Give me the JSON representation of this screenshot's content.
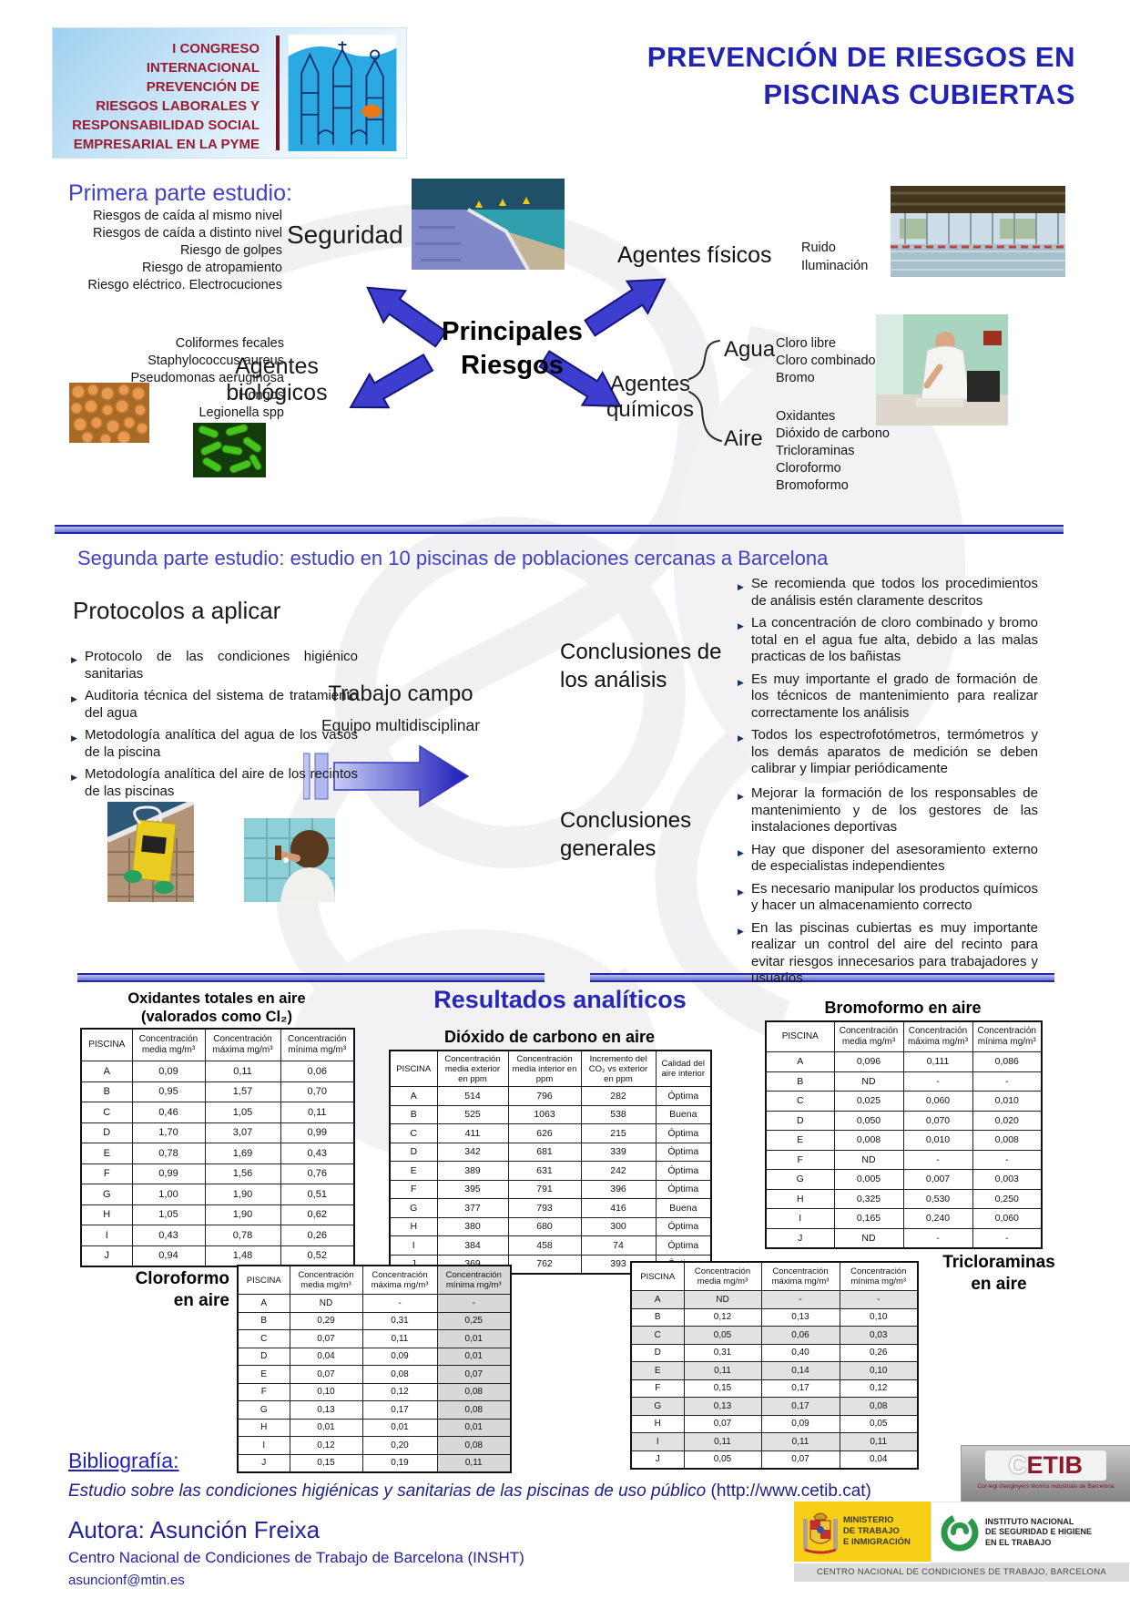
{
  "congress": {
    "lines": [
      "I CONGRESO INTERNACIONAL",
      "PREVENCIÓN DE",
      "RIESGOS LABORALES Y",
      "RESPONSABILIDAD SOCIAL",
      "EMPRESARIAL EN LA PYME"
    ]
  },
  "title": {
    "line1": "PREVENCIÓN DE RIESGOS EN",
    "line2": "PISCINAS CUBIERTAS"
  },
  "part1": {
    "heading": "Primera parte estudio:",
    "central": {
      "line1": "Principales",
      "line2": "Riesgos"
    },
    "seguridad": {
      "label": "Seguridad",
      "risks": [
        "Riesgos de caída al mismo nivel",
        "Riesgos de caída a distinto nivel",
        "Riesgo de golpes",
        "Riesgo de atropamiento",
        "Riesgo eléctrico. Electrocuciones"
      ]
    },
    "fisicos": {
      "label": "Agentes físicos",
      "items": [
        "Ruido",
        "Iluminación"
      ]
    },
    "biologicos": {
      "line1": "Agentes",
      "line2": "biológicos",
      "items": [
        "Coliformes fecales",
        "Staphylococcus aureus",
        "Pseudomonas aeruginosa",
        "Hongos",
        "Legionella spp"
      ]
    },
    "quimicos": {
      "line1": "Agentes",
      "line2": "químicos",
      "agua": {
        "label": "Agua",
        "items": [
          "Cloro libre",
          "Cloro combinado",
          "Bromo"
        ]
      },
      "aire": {
        "label": "Aire",
        "items": [
          "Oxidantes",
          "Dióxido de carbono",
          "Tricloraminas",
          "Cloroformo",
          "Bromoformo"
        ]
      }
    }
  },
  "part2": {
    "heading": "Segunda parte estudio:  estudio en 10 piscinas de poblaciones cercanas a Barcelona",
    "protocols": {
      "heading": "Protocolos a aplicar",
      "items": [
        "Protocolo de las condiciones higiénico sanitarias",
        "Auditoria técnica del sistema de tratamiento del agua",
        "Metodología analítica del agua de los vasos de la piscina",
        "Metodología analítica del aire de los recintos de las piscinas"
      ]
    },
    "fieldwork": {
      "label": "Trabajo campo",
      "sub": "Equipo multidisciplinar"
    },
    "analysis": {
      "line1": "Conclusiones de",
      "line2": "los análisis",
      "items": [
        "Se recomienda que todos los procedimientos de análisis estén claramente descritos",
        "La concentración de cloro combinado y bromo total en el agua fue alta, debido a las malas practicas de los bañistas",
        "Es muy importante el grado de formación de los técnicos de mantenimiento para realizar correctamente los análisis",
        "Todos los espectrofotómetros, termómetros y los demás aparatos de medición se deben calibrar y limpiar periódicamente"
      ]
    },
    "general": {
      "line1": "Conclusiones",
      "line2": "generales",
      "items": [
        "Mejorar la formación de los responsables de mantenimiento y de los gestores de las instalaciones deportivas",
        "Hay que disponer del asesoramiento externo de especialistas independientes",
        "Es necesario manipular los productos químicos y hacer un almacenamiento correcto",
        "En las piscinas cubiertas es muy importante realizar un control del aire del recinto para evitar riesgos innecesarios para trabajadores y usuarios"
      ]
    }
  },
  "results": {
    "heading": "Resultados analíticos",
    "oxidantes": {
      "title1": "Oxidantes totales en aire",
      "title2": "(valorados como Cl₂)",
      "headers": [
        "PISCINA",
        "Concentración media mg/m³",
        "Concentración máxima mg/m³",
        "Concentración mínima mg/m³"
      ],
      "rows": [
        [
          "A",
          "0,09",
          "0,11",
          "0,06"
        ],
        [
          "B",
          "0,95",
          "1,57",
          "0,70"
        ],
        [
          "C",
          "0,46",
          "1,05",
          "0,11"
        ],
        [
          "D",
          "1,70",
          "3,07",
          "0,99"
        ],
        [
          "E",
          "0,78",
          "1,69",
          "0,43"
        ],
        [
          "F",
          "0,99",
          "1,56",
          "0,76"
        ],
        [
          "G",
          "1,00",
          "1,90",
          "0,51"
        ],
        [
          "H",
          "1,05",
          "1,90",
          "0,62"
        ],
        [
          "I",
          "0,43",
          "0,78",
          "0,26"
        ],
        [
          "J",
          "0,94",
          "1,48",
          "0,52"
        ]
      ]
    },
    "co2": {
      "title": "Dióxido de carbono en aire",
      "headers": [
        "PISCINA",
        "Concentración media exterior en ppm",
        "Concentración media interior en ppm",
        "Incremento del CO₂ vs exterior en ppm",
        "Calidad del aire interior"
      ],
      "rows": [
        [
          "A",
          "514",
          "796",
          "282",
          "Óptima"
        ],
        [
          "B",
          "525",
          "1063",
          "538",
          "Buena"
        ],
        [
          "C",
          "411",
          "626",
          "215",
          "Óptima"
        ],
        [
          "D",
          "342",
          "681",
          "339",
          "Óptima"
        ],
        [
          "E",
          "389",
          "631",
          "242",
          "Óptima"
        ],
        [
          "F",
          "395",
          "791",
          "396",
          "Óptima"
        ],
        [
          "G",
          "377",
          "793",
          "416",
          "Buena"
        ],
        [
          "H",
          "380",
          "680",
          "300",
          "Óptima"
        ],
        [
          "I",
          "384",
          "458",
          "74",
          "Óptima"
        ],
        [
          "J",
          "369",
          "762",
          "393",
          "Óptima"
        ]
      ]
    },
    "bromoformo": {
      "title": "Bromoformo en aire",
      "headers": [
        "PISCINA",
        "Concentración media mg/m³",
        "Concentración máxima mg/m³",
        "Concentración mínima mg/m³"
      ],
      "rows": [
        [
          "A",
          "0,096",
          "0,111",
          "0,086"
        ],
        [
          "B",
          "ND",
          "-",
          "-"
        ],
        [
          "C",
          "0,025",
          "0,060",
          "0,010"
        ],
        [
          "D",
          "0,050",
          "0,070",
          "0,020"
        ],
        [
          "E",
          "0,008",
          "0,010",
          "0,008"
        ],
        [
          "F",
          "ND",
          "-",
          "-"
        ],
        [
          "G",
          "0,005",
          "0,007",
          "0,003"
        ],
        [
          "H",
          "0,325",
          "0,530",
          "0,250"
        ],
        [
          "I",
          "0,165",
          "0,240",
          "0,060"
        ],
        [
          "J",
          "ND",
          "-",
          "-"
        ]
      ]
    },
    "cloroformo": {
      "title1": "Cloroformo",
      "title2": "en aire",
      "headers": [
        "PISCINA",
        "Concentración media mg/m³",
        "Concentración máxima mg/m³",
        "Concentración mínima mg/m³"
      ],
      "rows": [
        [
          "A",
          "ND",
          "-",
          "-"
        ],
        [
          "B",
          "0,29",
          "0,31",
          "0,25"
        ],
        [
          "C",
          "0,07",
          "0,11",
          "0,01"
        ],
        [
          "D",
          "0,04",
          "0,09",
          "0,01"
        ],
        [
          "E",
          "0,07",
          "0,08",
          "0,07"
        ],
        [
          "F",
          "0,10",
          "0,12",
          "0,08"
        ],
        [
          "G",
          "0,13",
          "0,17",
          "0,08"
        ],
        [
          "H",
          "0,01",
          "0,01",
          "0,01"
        ],
        [
          "I",
          "0,12",
          "0,20",
          "0,08"
        ],
        [
          "J",
          "0,15",
          "0,19",
          "0,11"
        ]
      ]
    },
    "tricloraminas": {
      "title1": "Tricloraminas",
      "title2": "en aire",
      "headers": [
        "PISCINA",
        "Concentración media mg/m³",
        "Concentración máxima mg/m³",
        "Concentración mínima mg/m³"
      ],
      "rows": [
        [
          "A",
          "ND",
          "-",
          "-"
        ],
        [
          "B",
          "0,12",
          "0,13",
          "0,10"
        ],
        [
          "C",
          "0,05",
          "0,06",
          "0,03"
        ],
        [
          "D",
          "0,31",
          "0,40",
          "0,26"
        ],
        [
          "E",
          "0,11",
          "0,14",
          "0,10"
        ],
        [
          "F",
          "0,15",
          "0,17",
          "0,12"
        ],
        [
          "G",
          "0,13",
          "0,17",
          "0,08"
        ],
        [
          "H",
          "0,07",
          "0,09",
          "0,05"
        ],
        [
          "I",
          "0,11",
          "0,11",
          "0,11"
        ],
        [
          "J",
          "0,05",
          "0,07",
          "0,04"
        ]
      ]
    }
  },
  "bibliography": {
    "heading": "Bibliografía:",
    "study": "Estudio sobre las condiciones higiénicas y sanitarias de las piscinas de uso público",
    "url": " (http://www.cetib.cat)"
  },
  "footer": {
    "author": "Autora: Asunción Freixa",
    "center": "Centro Nacional de Condiciones de Trabajo de Barcelona (INSHT)",
    "email": "asuncionf@mtin.es",
    "cetib_name": "CETIB",
    "cetib_caption": "Col·legi d'enginyers tècnics industrials de Barcelona",
    "ministerio_lines": [
      "MINISTERIO",
      "DE TRABAJO",
      "E INMIGRACIÓN"
    ],
    "insht_lines": [
      "INSTITUTO NACIONAL",
      "DE SEGURIDAD E HIGIENE",
      "EN EL TRABAJO"
    ],
    "centro_caption": "CENTRO NACIONAL DE CONDICIONES DE TRABAJO, BARCELONA"
  },
  "colors": {
    "accent_blue": "#2323b2",
    "maroon": "#9b1b33",
    "arrow_blue": "#3d3dd0"
  }
}
